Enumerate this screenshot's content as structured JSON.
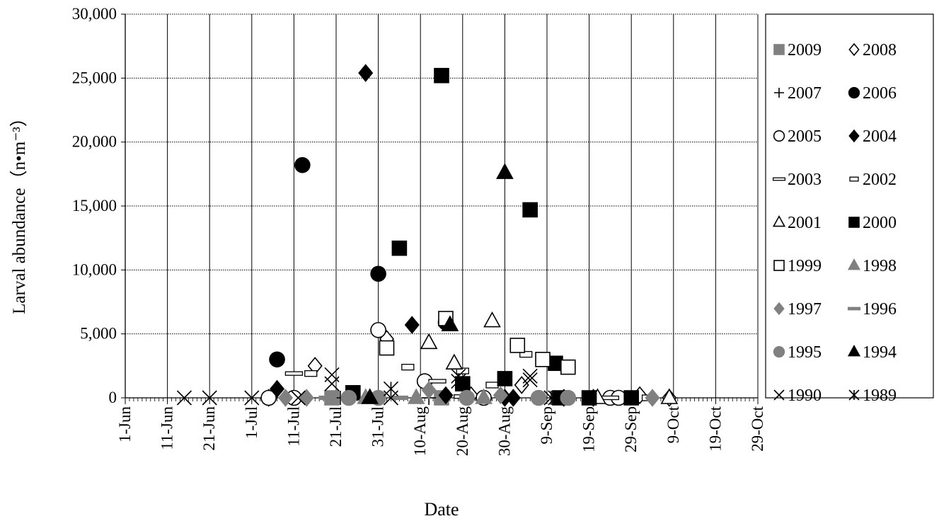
{
  "chart_data": {
    "type": "scatter",
    "xlabel": "Date",
    "ylabel": "Larval abundance（n•m⁻³）",
    "x_axis": {
      "type": "date",
      "range": [
        "1-Jun",
        "29-Oct"
      ],
      "tick_labels": [
        "1-Jun",
        "11-Jun",
        "21-Jun",
        "1-Jul",
        "11-Jul",
        "21-Jul",
        "31-Jul",
        "10-Aug",
        "20-Aug",
        "30-Aug",
        "9-Sep",
        "19-Sep",
        "29-Sep",
        "9-Oct",
        "19-Oct",
        "29-Oct"
      ],
      "grid": true
    },
    "y_axis": {
      "range": [
        0,
        30000
      ],
      "tick_values": [
        0,
        5000,
        10000,
        15000,
        20000,
        25000,
        30000
      ],
      "tick_labels": [
        "0",
        "5,000",
        "10,000",
        "15,000",
        "20,000",
        "25,000",
        "30,000"
      ],
      "grid": true,
      "grid_style": "dotted"
    },
    "legend": {
      "placement": "right",
      "columns": 2
    },
    "series": [
      {
        "name": "2009",
        "marker": "square",
        "color": "#808080",
        "filled": true,
        "points": [
          [
            "20-Jul",
            0
          ],
          [
            "15-Aug",
            0
          ]
        ]
      },
      {
        "name": "2008",
        "marker": "diamond",
        "color": "#000000",
        "filled": false,
        "points": [
          [
            "5-Jul",
            0
          ],
          [
            "16-Jul",
            2500
          ],
          [
            "2-Aug",
            4600
          ],
          [
            "22-Aug",
            200
          ],
          [
            "3-Sep",
            1000
          ],
          [
            "20-Sep",
            0
          ],
          [
            "1-Oct",
            200
          ],
          [
            "8-Oct",
            0
          ]
        ]
      },
      {
        "name": "2007",
        "marker": "plus",
        "color": "#000000",
        "filled": false,
        "points": [
          [
            "22-Jul",
            0
          ],
          [
            "12-Aug",
            0
          ],
          [
            "25-Aug",
            0
          ],
          [
            "12-Sep",
            0
          ]
        ]
      },
      {
        "name": "2006",
        "marker": "circle",
        "color": "#000000",
        "filled": true,
        "points": [
          [
            "7-Jul",
            3000
          ],
          [
            "13-Jul",
            18200
          ],
          [
            "31-Jul",
            9700
          ],
          [
            "16-Aug",
            5900
          ]
        ]
      },
      {
        "name": "2005",
        "marker": "circle",
        "color": "#000000",
        "filled": false,
        "points": [
          [
            "5-Jul",
            0
          ],
          [
            "11-Jul",
            0
          ],
          [
            "31-Jul",
            5300
          ],
          [
            "11-Aug",
            1300
          ],
          [
            "25-Aug",
            0
          ],
          [
            "24-Sep",
            0
          ],
          [
            "26-Sep",
            0
          ]
        ]
      },
      {
        "name": "2004",
        "marker": "diamond",
        "color": "#000000",
        "filled": true,
        "points": [
          [
            "7-Jul",
            700
          ],
          [
            "28-Jul",
            25400
          ],
          [
            "8-Aug",
            5700
          ],
          [
            "16-Aug",
            200
          ],
          [
            "30-Aug",
            0
          ],
          [
            "1-Sep",
            0
          ],
          [
            "13-Sep",
            0
          ]
        ]
      },
      {
        "name": "2003",
        "marker": "dash",
        "color": "#000000",
        "filled": false,
        "points": [
          [
            "11-Jul",
            1900
          ],
          [
            "14-Aug",
            1300
          ],
          [
            "20-Aug",
            100
          ],
          [
            "24-Sep",
            0
          ]
        ]
      },
      {
        "name": "2002",
        "marker": "small-rect",
        "color": "#000000",
        "filled": false,
        "points": [
          [
            "15-Jul",
            1900
          ],
          [
            "7-Aug",
            2400
          ],
          [
            "20-Aug",
            2100
          ],
          [
            "27-Aug",
            1000
          ],
          [
            "4-Sep",
            3400
          ],
          [
            "3-Oct",
            0
          ]
        ]
      },
      {
        "name": "2001",
        "marker": "triangle",
        "color": "#000000",
        "filled": false,
        "points": [
          [
            "12-Aug",
            4300
          ],
          [
            "18-Aug",
            2700
          ],
          [
            "27-Aug",
            6000
          ],
          [
            "21-Sep",
            0
          ],
          [
            "8-Oct",
            0
          ]
        ]
      },
      {
        "name": "2000",
        "marker": "square",
        "color": "#000000",
        "filled": true,
        "points": [
          [
            "25-Jul",
            400
          ],
          [
            "5-Aug",
            11700
          ],
          [
            "15-Aug",
            25200
          ],
          [
            "20-Aug",
            1100
          ],
          [
            "30-Aug",
            1500
          ],
          [
            "5-Sep",
            14700
          ],
          [
            "11-Sep",
            2700
          ],
          [
            "12-Sep",
            0
          ],
          [
            "19-Sep",
            0
          ],
          [
            "29-Sep",
            0
          ]
        ]
      },
      {
        "name": "1999",
        "marker": "square",
        "color": "#000000",
        "filled": false,
        "points": [
          [
            "2-Aug",
            3900
          ],
          [
            "16-Aug",
            6200
          ],
          [
            "2-Sep",
            4100
          ],
          [
            "8-Sep",
            3000
          ],
          [
            "14-Sep",
            2400
          ]
        ]
      },
      {
        "name": "1998",
        "marker": "triangle",
        "color": "#808080",
        "filled": true,
        "points": [
          [
            "28-Jul",
            0
          ],
          [
            "9-Aug",
            0
          ],
          [
            "25-Aug",
            0
          ]
        ]
      },
      {
        "name": "1997",
        "marker": "diamond",
        "color": "#808080",
        "filled": true,
        "points": [
          [
            "9-Jul",
            0
          ],
          [
            "14-Jul",
            0
          ],
          [
            "12-Aug",
            600
          ],
          [
            "29-Aug",
            200
          ],
          [
            "4-Oct",
            0
          ]
        ]
      },
      {
        "name": "1996",
        "marker": "dash",
        "color": "#808080",
        "filled": true,
        "points": [
          [
            "19-Jul",
            0
          ],
          [
            "5-Aug",
            0
          ]
        ]
      },
      {
        "name": "1995",
        "marker": "circle",
        "color": "#808080",
        "filled": true,
        "points": [
          [
            "24-Jul",
            0
          ],
          [
            "31-Jul",
            0
          ],
          [
            "21-Aug",
            0
          ],
          [
            "7-Sep",
            0
          ],
          [
            "14-Sep",
            0
          ]
        ]
      },
      {
        "name": "1994",
        "marker": "triangle",
        "color": "#000000",
        "filled": true,
        "points": [
          [
            "29-Jul",
            0
          ],
          [
            "17-Aug",
            5700
          ],
          [
            "30-Aug",
            17600
          ]
        ]
      },
      {
        "name": "1990",
        "marker": "x",
        "color": "#000000",
        "filled": false,
        "points": [
          [
            "15-Jun",
            0
          ],
          [
            "21-Jun",
            0
          ],
          [
            "1-Jul",
            0
          ],
          [
            "12-Jul",
            0
          ],
          [
            "20-Jul",
            1100
          ],
          [
            "20-Jul",
            1800
          ],
          [
            "3-Aug",
            0
          ],
          [
            "19-Aug",
            1700
          ],
          [
            "5-Sep",
            1400
          ],
          [
            "5-Sep",
            1700
          ],
          [
            "11-Sep",
            0
          ]
        ]
      },
      {
        "name": "1989",
        "marker": "asterisk",
        "color": "#000000",
        "filled": false,
        "points": [
          [
            "3-Aug",
            700
          ],
          [
            "19-Aug",
            1300
          ],
          [
            "10-Sep",
            0
          ]
        ]
      }
    ]
  }
}
